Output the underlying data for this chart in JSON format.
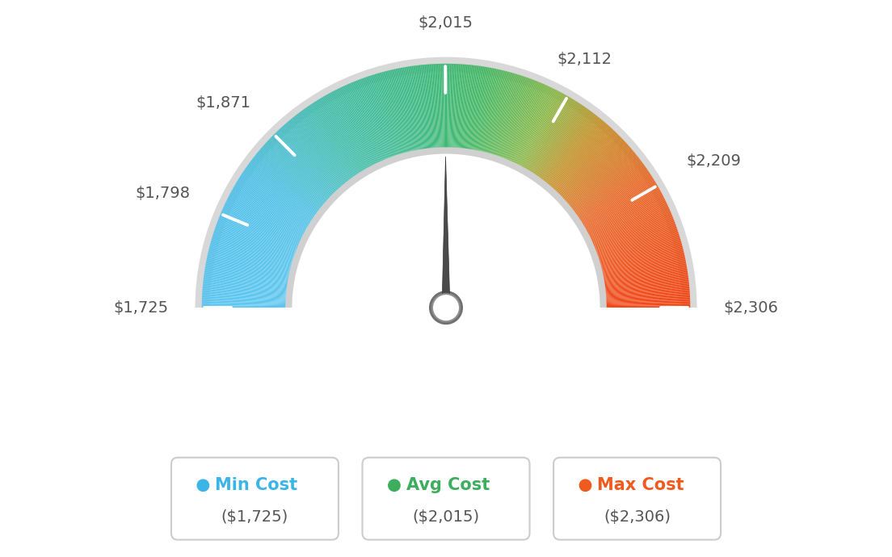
{
  "min_val": 1725,
  "avg_val": 2015,
  "max_val": 2306,
  "tick_labels": [
    "$1,725",
    "$1,798",
    "$1,871",
    "$2,015",
    "$2,112",
    "$2,209",
    "$2,306"
  ],
  "tick_values": [
    1725,
    1798,
    1871,
    2015,
    2112,
    2209,
    2306
  ],
  "legend": [
    {
      "label": "Min Cost",
      "value": "($1,725)",
      "color": "#3ab5e6"
    },
    {
      "label": "Avg Cost",
      "value": "($2,015)",
      "color": "#3dae5e"
    },
    {
      "label": "Max Cost",
      "value": "($2,306)",
      "color": "#f05a1e"
    }
  ],
  "background_color": "#ffffff",
  "color_stops": [
    [
      0.0,
      "#5bc5f0"
    ],
    [
      0.18,
      "#50c0e8"
    ],
    [
      0.33,
      "#42bca8"
    ],
    [
      0.48,
      "#3db87a"
    ],
    [
      0.55,
      "#45b865"
    ],
    [
      0.65,
      "#8ab84a"
    ],
    [
      0.72,
      "#c4922a"
    ],
    [
      0.82,
      "#e86828"
    ],
    [
      1.0,
      "#f04515"
    ]
  ],
  "needle_value": 2015,
  "label_fontsize": 14,
  "legend_fontsize": 15,
  "legend_value_fontsize": 14
}
